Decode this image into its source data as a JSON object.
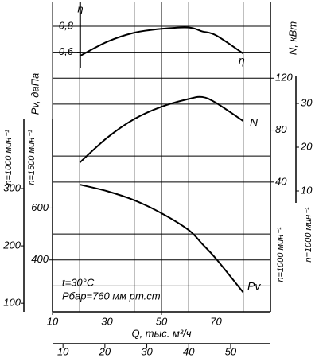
{
  "chart_data": {
    "type": "line",
    "xlabel": "Q, тыс. м³/ч",
    "xlim": [
      10,
      90
    ],
    "xticks": [
      10,
      30,
      50,
      70
    ],
    "xgrid": [
      10,
      20,
      30,
      40,
      50,
      60,
      70,
      80,
      90
    ],
    "x2lim": [
      7.5,
      59.5
    ],
    "x2ticks": [
      10,
      20,
      30,
      40,
      50
    ],
    "y_axes": [
      {
        "label": "η",
        "ylim": [
          -1.4,
          0.8
        ],
        "yticks": [
          {
            "value": 0.6,
            "label": "0,6"
          },
          {
            "value": 0.8,
            "label": "0,8"
          }
        ]
      },
      {
        "label": "Pv, даПа",
        "ylim": [
          200,
          1300
        ],
        "yticks": [
          400,
          600
        ],
        "speed": "n=1500 мин⁻¹"
      },
      {
        "ylim": [
          85,
          300
        ],
        "yticks": [
          100,
          200,
          300
        ],
        "speed": "n=1000 мин⁻¹"
      },
      {
        "label": "N, кВт",
        "ylim": [
          -60,
          160
        ],
        "yticks": [
          40,
          80,
          120
        ],
        "speed": "n=1000 мин⁻¹"
      },
      {
        "ylim": [
          8,
          36
        ],
        "yticks": [
          10,
          20,
          30
        ],
        "speed": "n=1000 мин⁻¹"
      }
    ],
    "ygrid": [
      300,
      400,
      500,
      600,
      700,
      800,
      900,
      1000,
      1100,
      1200,
      1300
    ],
    "annotations": [
      "t=30°C",
      "Pбар=760 мм рт.ст."
    ],
    "x": [
      20,
      30,
      40,
      50,
      60,
      65,
      70,
      80
    ],
    "series": [
      {
        "name": "η",
        "axis": 0,
        "color": "#000000",
        "values": [
          0.57,
          0.68,
          0.75,
          0.78,
          0.79,
          0.76,
          0.73,
          0.59
        ]
      },
      {
        "name": "N",
        "axis": 3,
        "color": "#000000",
        "values": [
          55,
          74,
          88.5,
          98,
          104,
          105.5,
          101,
          87
        ]
      },
      {
        "name": "Pv",
        "axis": 1,
        "color": "#000000",
        "values": [
          690,
          665,
          630,
          580,
          515,
          461,
          405,
          275
        ]
      }
    ]
  }
}
